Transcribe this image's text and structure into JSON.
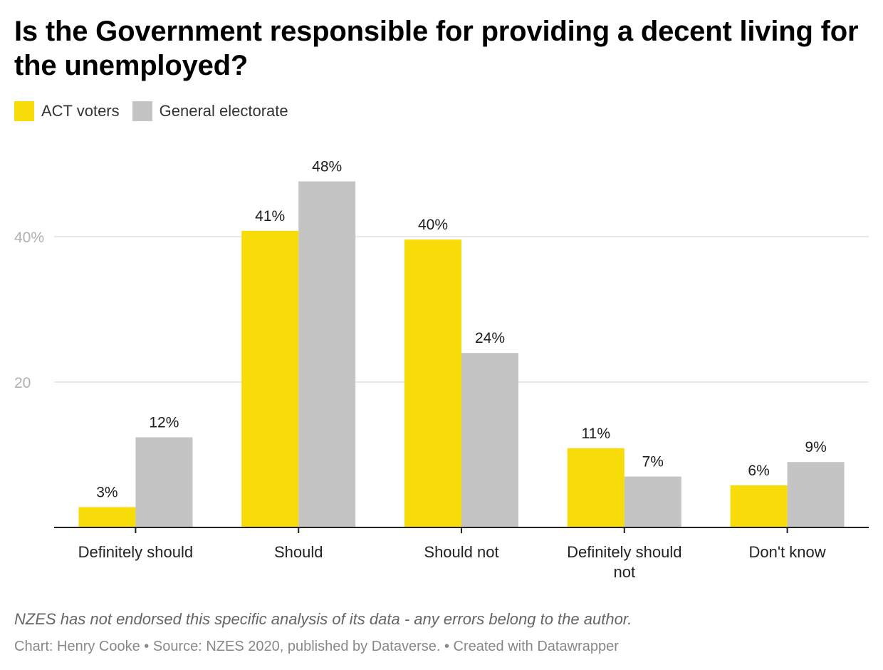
{
  "title": "Is the Government responsible for providing a decent living for the unemployed?",
  "legend": [
    {
      "label": "ACT voters",
      "color": "#f8dc0a"
    },
    {
      "label": "General electorate",
      "color": "#c4c4c4"
    }
  ],
  "footnote": "NZES has not endorsed this specific analysis of its data - any errors belong to the author.",
  "credits": "Chart: Henry Cooke • Source: NZES 2020, published by Dataverse. • Created with Datawrapper",
  "chart_data": {
    "type": "bar",
    "categories": [
      "Definitely should",
      "Should",
      "Should not",
      "Definitely should not",
      "Don't know"
    ],
    "category_lines": [
      [
        "Definitely should"
      ],
      [
        "Should"
      ],
      [
        "Should not"
      ],
      [
        "Definitely should",
        "not"
      ],
      [
        "Don't know"
      ]
    ],
    "series": [
      {
        "name": "ACT voters",
        "color": "#f8dc0a",
        "values": [
          2.8,
          40.8,
          39.6,
          10.9,
          5.8
        ],
        "labels": [
          "3%",
          "41%",
          "40%",
          "11%",
          "6%"
        ]
      },
      {
        "name": "General electorate",
        "color": "#c4c4c4",
        "values": [
          12.4,
          47.6,
          24.0,
          7.0,
          9.0
        ],
        "labels": [
          "12%",
          "48%",
          "24%",
          "7%",
          "9%"
        ]
      }
    ],
    "yticks": [
      {
        "value": 20,
        "label": "20"
      },
      {
        "value": 40,
        "label": "40%"
      }
    ],
    "ylim": [
      0,
      50
    ],
    "grid": true,
    "legend_position": "top-left"
  }
}
